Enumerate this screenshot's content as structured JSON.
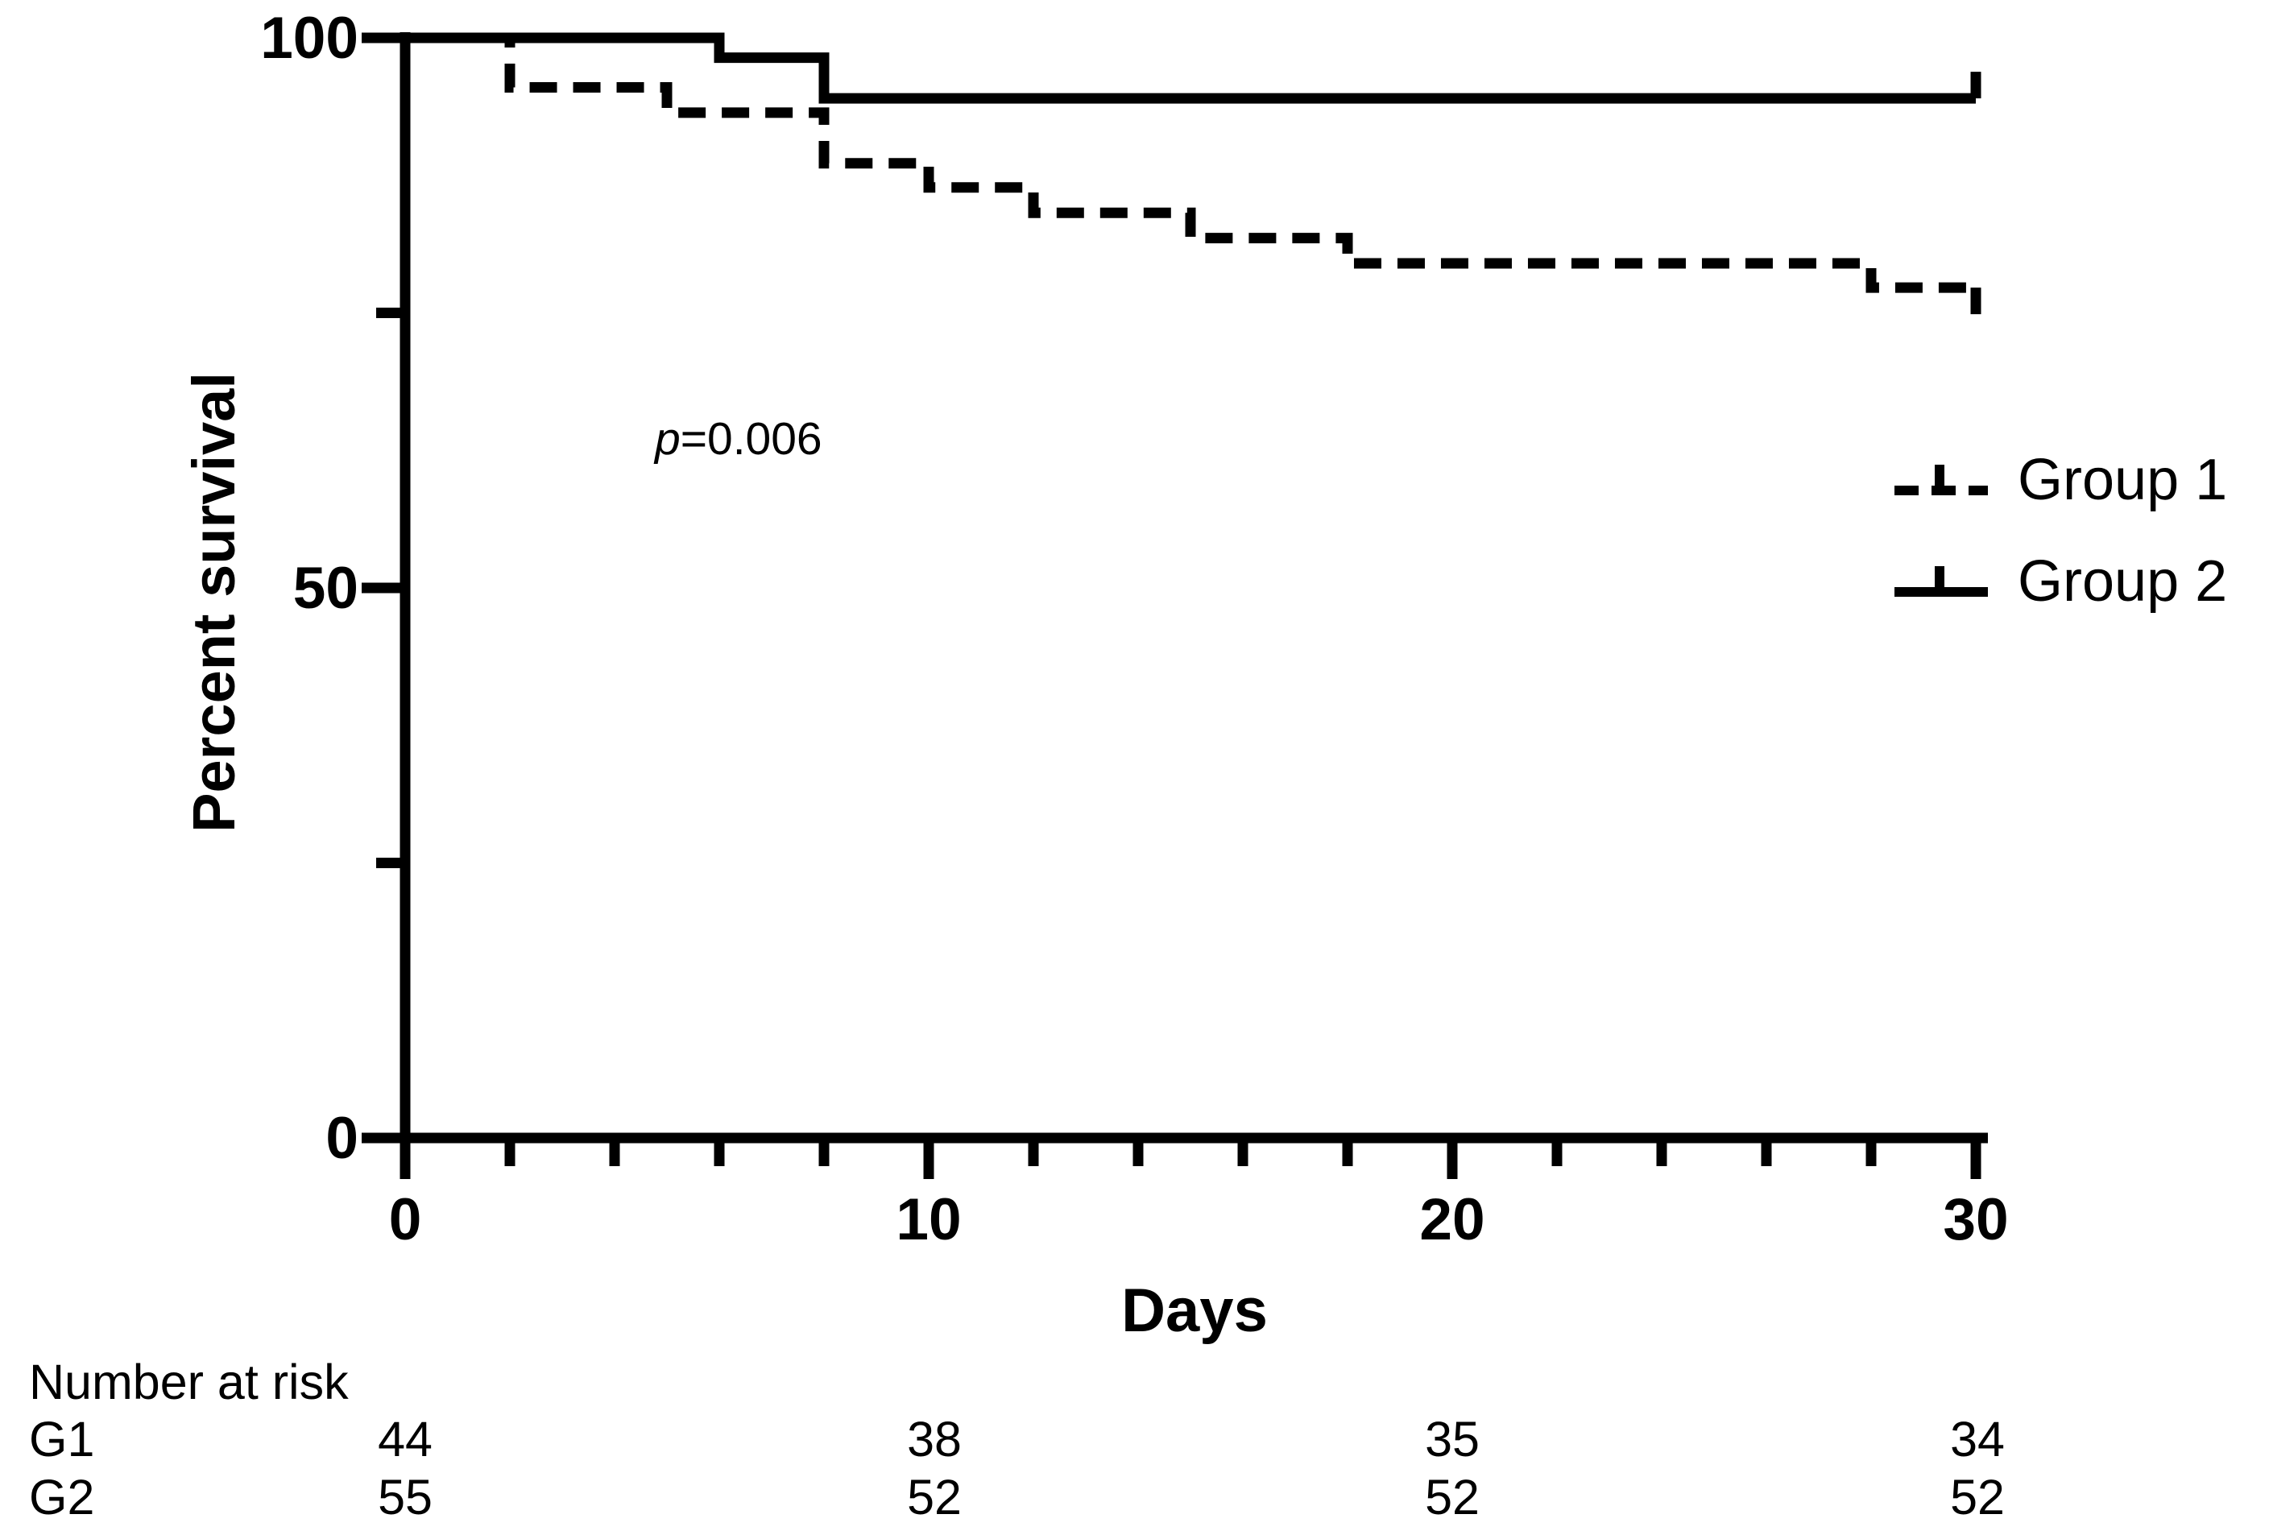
{
  "figure": {
    "y_axis": {
      "title": "Percent survival",
      "major_tick_labels": [
        "100",
        "50",
        "0"
      ],
      "major_ticks": [
        100,
        50,
        0
      ],
      "minor_ticks": [
        75,
        25
      ]
    },
    "x_axis": {
      "title": "Days",
      "major_tick_labels": [
        "0",
        "10",
        "20",
        "30"
      ],
      "major_ticks": [
        0,
        10,
        20,
        30
      ],
      "minor_ticks": [
        2,
        4,
        6,
        8,
        12,
        14,
        16,
        18,
        22,
        24,
        26,
        28
      ]
    },
    "annotation": {
      "p_italic": "p",
      "p_rest": "=0.006"
    },
    "legend": [
      {
        "label": "Group 1",
        "style": "dashed"
      },
      {
        "label": "Group 2",
        "style": "solid"
      }
    ],
    "chart_data": {
      "type": "line",
      "subtype": "kaplan-meier-step",
      "title": "",
      "xlabel": "Days",
      "ylabel": "Percent survival",
      "xlim": [
        0,
        30
      ],
      "ylim": [
        0,
        100
      ],
      "grid": false,
      "legend_position": "right",
      "annotation": "p=0.006",
      "series": [
        {
          "name": "Group 1",
          "line_style": "dashed",
          "color": "#000000",
          "end_tick": "down",
          "steps": [
            [
              0,
              100
            ],
            [
              2,
              95.5
            ],
            [
              5,
              93.2
            ],
            [
              8,
              88.6
            ],
            [
              10,
              86.4
            ],
            [
              12,
              84.1
            ],
            [
              15,
              81.8
            ],
            [
              18,
              79.5
            ],
            [
              28,
              77.3
            ],
            [
              30,
              75.0
            ]
          ]
        },
        {
          "name": "Group 2",
          "line_style": "solid",
          "color": "#000000",
          "end_tick": "up",
          "steps": [
            [
              0,
              100
            ],
            [
              6,
              98.2
            ],
            [
              8,
              94.5
            ],
            [
              30,
              94.5
            ]
          ]
        }
      ]
    },
    "risk_table": {
      "title": "Number at risk",
      "columns_days": [
        0,
        10,
        20,
        30
      ],
      "rows": [
        {
          "label": "G1",
          "values": [
            44,
            38,
            35,
            34
          ]
        },
        {
          "label": "G2",
          "values": [
            55,
            52,
            52,
            52
          ]
        }
      ]
    },
    "colors": {
      "ink": "#000000",
      "background": "#ffffff"
    }
  }
}
